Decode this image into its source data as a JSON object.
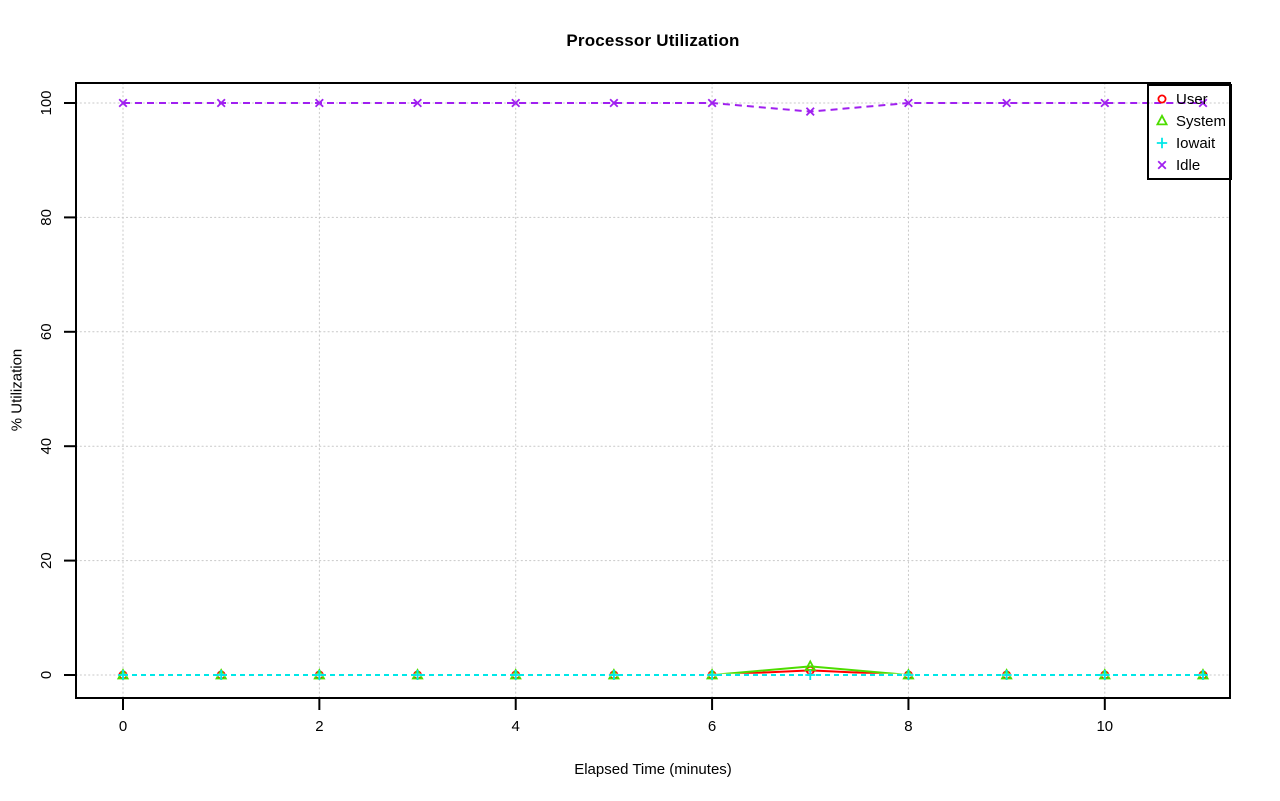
{
  "chart_data": {
    "type": "line",
    "title": "Processor Utilization",
    "xlabel": "Elapsed Time (minutes)",
    "ylabel": "% Utilization",
    "x": [
      0,
      1,
      2,
      3,
      4,
      5,
      6,
      7,
      8,
      9,
      10,
      11
    ],
    "xlim": [
      0,
      11
    ],
    "ylim": [
      0,
      100
    ],
    "xticks": [
      0,
      2,
      4,
      6,
      8,
      10
    ],
    "yticks": [
      0,
      20,
      40,
      60,
      80,
      100
    ],
    "grid": true,
    "grid_style": "dotted",
    "grid_color": "#c8c8c8",
    "legend_position": "top-right",
    "series": [
      {
        "name": "User",
        "color": "#ff0000",
        "marker": "circle",
        "line": "solid",
        "values": [
          0,
          0,
          0,
          0,
          0,
          0,
          0,
          0.8,
          0,
          0,
          0,
          0
        ]
      },
      {
        "name": "System",
        "color": "#4ddd00",
        "marker": "triangle",
        "line": "solid",
        "values": [
          0,
          0,
          0,
          0,
          0,
          0,
          0,
          1.5,
          0,
          0,
          0,
          0
        ]
      },
      {
        "name": "Iowait",
        "color": "#00e8e8",
        "marker": "plus",
        "line": "dashed",
        "values": [
          0,
          0,
          0,
          0,
          0,
          0,
          0,
          0,
          0,
          0,
          0,
          0
        ]
      },
      {
        "name": "Idle",
        "color": "#a020f0",
        "marker": "x",
        "line": "dashed",
        "values": [
          100,
          100,
          100,
          100,
          100,
          100,
          100,
          98.5,
          100,
          100,
          100,
          100
        ]
      }
    ]
  }
}
